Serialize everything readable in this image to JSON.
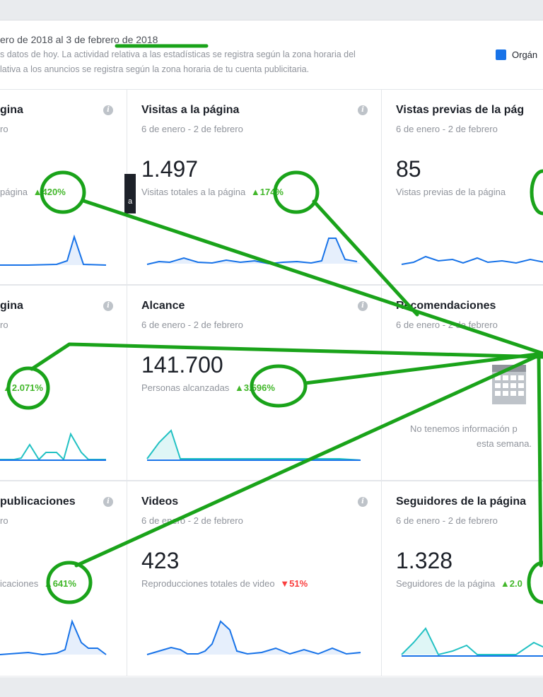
{
  "header": {
    "date_range": "ero de 2018 al 3 de febrero de 2018",
    "note_line1": "s datos de hoy. La actividad relativa a las estadísticas se registra según la zona horaria del",
    "note_line2": "lativa a los anuncios se registra según la zona horaria de tu cuenta publicitaria.",
    "legend_label": "Orgán",
    "legend_color": "#1873e8"
  },
  "cards": {
    "c1": {
      "title": "gina",
      "date": "ro",
      "metric": "página",
      "change": "420%"
    },
    "c2": {
      "title": "Visitas a la página",
      "date": "6 de enero - 2 de febrero",
      "value": "1.497",
      "metric": "Visitas totales a la página",
      "change": "174%"
    },
    "c3": {
      "title": "Vistas previas de la pág",
      "date": "6 de enero - 2 de febrero",
      "value": "85",
      "metric": "Vistas previas de la página"
    },
    "c4": {
      "title": "gina",
      "date": "ro",
      "change": "2.071%"
    },
    "c5": {
      "title": "Alcance",
      "date": "6 de enero - 2 de febrero",
      "value": "141.700",
      "metric": "Personas alcanzadas",
      "change": "3.596%"
    },
    "c6": {
      "title": "Recomendaciones",
      "date": "6 de enero - 2 de febrero",
      "nodata_line1": "No tenemos información p",
      "nodata_line2": "esta semana."
    },
    "c7": {
      "title": "publicaciones",
      "date": "ro",
      "metric": "icaciones",
      "change": "641%"
    },
    "c8": {
      "title": "Videos",
      "date": "6 de enero - 2 de febrero",
      "value": "423",
      "metric": "Reproducciones totales de video",
      "change": "51%"
    },
    "c9": {
      "title": "Seguidores de la página",
      "date": "6 de enero - 2 de febrero",
      "value": "1.328",
      "metric": "Seguidores de la página",
      "change": "2.0"
    }
  },
  "tooltip_text": "a",
  "icons": {
    "info": "info-icon",
    "up": "triangle-up-icon",
    "down": "triangle-down-icon",
    "calendar": "calendar-icon"
  },
  "colors": {
    "blue": "#1873e8",
    "teal": "#22c1c3",
    "up": "#42b72a",
    "down": "#fa3e3e",
    "annotation": "#1aa31a"
  }
}
